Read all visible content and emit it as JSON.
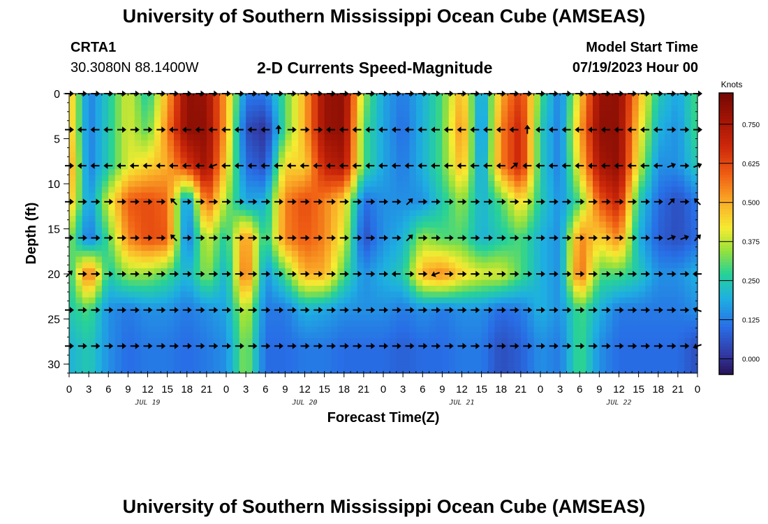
{
  "header": {
    "title": "University of Southern Mississippi Ocean Cube (AMSEAS)",
    "station": "CRTA1",
    "coords": "30.3080N  88.1400W",
    "subtitle": "2-D Currents Speed-Magnitude",
    "model_start_label": "Model Start Time",
    "model_start_value": "07/19/2023 Hour 00"
  },
  "footer": {
    "title": "University of Southern Mississippi Ocean Cube (AMSEAS)"
  },
  "chart_data": {
    "type": "heatmap",
    "title": "2-D Currents Speed-Magnitude",
    "xlabel": "Forecast Time(Z)",
    "ylabel": "Depth (ft)",
    "x_range_hours": [
      0,
      96
    ],
    "y_range_ft": [
      0,
      31
    ],
    "x_ticks": [
      "0",
      "3",
      "6",
      "9",
      "12",
      "15",
      "18",
      "21",
      "0",
      "3",
      "6",
      "9",
      "12",
      "15",
      "18",
      "21",
      "0",
      "3",
      "6",
      "9",
      "12",
      "15",
      "18",
      "21",
      "0",
      "3",
      "6",
      "9",
      "12",
      "15",
      "18",
      "21",
      "0"
    ],
    "y_ticks": [
      0,
      5,
      10,
      15,
      20,
      25,
      30
    ],
    "date_labels": [
      {
        "label": "JUL 19",
        "hour": 12
      },
      {
        "label": "JUL 20",
        "hour": 36
      },
      {
        "label": "JUL 21",
        "hour": 60
      },
      {
        "label": "JUL 22",
        "hour": 84
      }
    ],
    "colorbar": {
      "units": "Knots",
      "range": [
        -0.05,
        0.85
      ],
      "ticks": [
        "0.000",
        "0.125",
        "0.250",
        "0.375",
        "0.500",
        "0.625",
        "0.750"
      ]
    },
    "time_hours": [
      0,
      3,
      6,
      9,
      12,
      15,
      18,
      21,
      24,
      27,
      30,
      33,
      36,
      39,
      42,
      45,
      48,
      51,
      54,
      57,
      60,
      63,
      66,
      69,
      72,
      75,
      78,
      81,
      84,
      87,
      90,
      93,
      96
    ],
    "depth_levels_ft": [
      0,
      4,
      8,
      12,
      16,
      20,
      24,
      28
    ],
    "speed_knots": [
      [
        0.5,
        0.12,
        0.25,
        0.4,
        0.25,
        0.5,
        0.8,
        0.78,
        0.5,
        0.12,
        0.12,
        0.3,
        0.5,
        0.78,
        0.8,
        0.35,
        0.18,
        0.12,
        0.2,
        0.3,
        0.5,
        0.15,
        0.5,
        0.65,
        0.3,
        0.12,
        0.45,
        0.78,
        0.8,
        0.5,
        0.25,
        0.18,
        0.3
      ],
      [
        0.5,
        0.12,
        0.25,
        0.4,
        0.3,
        0.55,
        0.8,
        0.8,
        0.5,
        0.05,
        0.0,
        0.3,
        0.5,
        0.78,
        0.8,
        0.3,
        0.18,
        0.1,
        0.2,
        0.3,
        0.55,
        0.12,
        0.55,
        0.7,
        0.25,
        0.12,
        0.5,
        0.8,
        0.8,
        0.45,
        0.2,
        0.15,
        0.3
      ],
      [
        0.55,
        0.12,
        0.25,
        0.4,
        0.45,
        0.5,
        0.65,
        0.78,
        0.45,
        0.1,
        0.05,
        0.45,
        0.45,
        0.7,
        0.75,
        0.3,
        0.18,
        0.12,
        0.2,
        0.3,
        0.5,
        0.15,
        0.55,
        0.7,
        0.25,
        0.12,
        0.45,
        0.75,
        0.8,
        0.4,
        0.15,
        0.15,
        0.25
      ],
      [
        0.5,
        0.15,
        0.4,
        0.6,
        0.62,
        0.58,
        0.12,
        0.6,
        0.35,
        0.18,
        0.2,
        0.55,
        0.62,
        0.55,
        0.45,
        0.1,
        0.15,
        0.15,
        0.15,
        0.25,
        0.35,
        0.2,
        0.3,
        0.45,
        0.25,
        0.15,
        0.3,
        0.6,
        0.7,
        0.25,
        0.1,
        0.05,
        0.12
      ],
      [
        0.35,
        0.1,
        0.3,
        0.55,
        0.62,
        0.6,
        0.1,
        0.4,
        0.25,
        0.55,
        0.25,
        0.55,
        0.6,
        0.55,
        0.4,
        0.05,
        0.15,
        0.2,
        0.35,
        0.3,
        0.3,
        0.2,
        0.25,
        0.3,
        0.2,
        0.15,
        0.55,
        0.45,
        0.55,
        0.2,
        0.08,
        0.05,
        0.1
      ],
      [
        0.25,
        0.6,
        0.25,
        0.35,
        0.35,
        0.3,
        0.2,
        0.35,
        0.2,
        0.6,
        0.15,
        0.3,
        0.5,
        0.5,
        0.3,
        0.15,
        0.2,
        0.25,
        0.5,
        0.55,
        0.45,
        0.4,
        0.4,
        0.3,
        0.2,
        0.15,
        0.6,
        0.3,
        0.3,
        0.25,
        0.15,
        0.15,
        0.2
      ],
      [
        0.25,
        0.3,
        0.15,
        0.12,
        0.15,
        0.15,
        0.12,
        0.15,
        0.18,
        0.4,
        0.12,
        0.12,
        0.2,
        0.18,
        0.15,
        0.15,
        0.15,
        0.12,
        0.15,
        0.12,
        0.15,
        0.15,
        0.1,
        0.12,
        0.2,
        0.15,
        0.3,
        0.2,
        0.12,
        0.12,
        0.12,
        0.12,
        0.15
      ],
      [
        0.2,
        0.25,
        0.15,
        0.1,
        0.12,
        0.12,
        0.1,
        0.12,
        0.15,
        0.35,
        0.1,
        0.1,
        0.12,
        0.12,
        0.1,
        0.1,
        0.1,
        0.08,
        0.1,
        0.1,
        0.12,
        0.12,
        0.05,
        0.08,
        0.15,
        0.12,
        0.3,
        0.15,
        0.1,
        0.1,
        0.1,
        0.1,
        0.05
      ]
    ],
    "arrow_depths_ft": [
      0,
      4,
      8,
      12,
      16,
      20,
      24,
      28
    ],
    "arrow_hours": [
      0,
      2,
      4,
      6,
      8,
      10,
      12,
      14,
      16,
      18,
      20,
      22,
      24,
      26,
      28,
      30,
      32,
      34,
      36,
      38,
      40,
      42,
      44,
      46,
      48,
      50,
      52,
      54,
      56,
      58,
      60,
      62,
      64,
      66,
      68,
      70,
      72,
      74,
      76,
      78,
      80,
      82,
      84,
      86,
      88,
      90,
      92,
      94,
      96
    ],
    "arrow_directions_deg": [
      [
        0,
        0,
        0,
        0,
        0,
        0,
        0,
        0,
        0,
        0,
        0,
        0,
        0,
        0,
        0,
        0,
        0,
        0,
        0,
        0,
        0,
        0,
        0,
        0,
        0,
        0,
        0,
        0,
        0,
        0,
        0,
        0,
        0,
        0,
        0,
        0,
        0,
        0,
        0,
        0,
        0,
        0,
        0,
        0,
        0,
        0,
        0,
        0,
        0
      ],
      [
        0,
        180,
        180,
        180,
        0,
        0,
        0,
        0,
        180,
        180,
        180,
        180,
        180,
        180,
        180,
        180,
        90,
        0,
        0,
        0,
        180,
        180,
        180,
        180,
        180,
        180,
        180,
        180,
        180,
        180,
        180,
        180,
        180,
        180,
        180,
        90,
        180,
        180,
        180,
        180,
        180,
        180,
        180,
        180,
        180,
        180,
        0,
        0,
        0
      ],
      [
        0,
        180,
        180,
        180,
        180,
        180,
        180,
        180,
        180,
        180,
        180,
        200,
        180,
        180,
        180,
        180,
        180,
        180,
        180,
        180,
        180,
        180,
        180,
        180,
        180,
        180,
        180,
        180,
        180,
        180,
        180,
        180,
        180,
        180,
        40,
        180,
        180,
        180,
        180,
        180,
        180,
        180,
        180,
        180,
        180,
        180,
        20,
        0,
        20
      ],
      [
        0,
        0,
        0,
        0,
        0,
        0,
        0,
        0,
        135,
        0,
        0,
        0,
        0,
        0,
        0,
        0,
        0,
        0,
        0,
        0,
        0,
        0,
        0,
        0,
        0,
        0,
        45,
        0,
        0,
        0,
        0,
        0,
        0,
        0,
        0,
        0,
        0,
        0,
        0,
        0,
        0,
        0,
        0,
        0,
        0,
        0,
        45,
        0,
        135
      ],
      [
        0,
        0,
        0,
        0,
        0,
        0,
        0,
        0,
        135,
        0,
        0,
        0,
        0,
        0,
        0,
        0,
        0,
        0,
        0,
        0,
        0,
        0,
        0,
        0,
        0,
        0,
        45,
        0,
        0,
        0,
        0,
        0,
        0,
        0,
        0,
        0,
        0,
        0,
        0,
        0,
        0,
        0,
        0,
        0,
        0,
        0,
        20,
        20,
        45
      ],
      [
        45,
        0,
        0,
        0,
        0,
        0,
        0,
        0,
        0,
        0,
        0,
        0,
        0,
        0,
        0,
        0,
        0,
        0,
        0,
        0,
        0,
        0,
        0,
        0,
        0,
        180,
        0,
        0,
        200,
        0,
        0,
        0,
        0,
        0,
        0,
        0,
        0,
        0,
        0,
        0,
        0,
        0,
        0,
        0,
        0,
        0,
        0,
        0,
        180
      ],
      [
        0,
        0,
        0,
        0,
        0,
        0,
        0,
        0,
        0,
        0,
        0,
        0,
        0,
        0,
        0,
        0,
        0,
        0,
        0,
        0,
        0,
        0,
        0,
        0,
        0,
        0,
        0,
        0,
        0,
        0,
        0,
        0,
        0,
        0,
        0,
        0,
        0,
        0,
        0,
        0,
        0,
        0,
        0,
        0,
        0,
        0,
        0,
        0,
        160
      ],
      [
        0,
        0,
        0,
        0,
        0,
        0,
        0,
        0,
        0,
        0,
        0,
        0,
        0,
        0,
        0,
        0,
        0,
        0,
        0,
        0,
        0,
        0,
        0,
        0,
        0,
        0,
        0,
        0,
        0,
        0,
        0,
        0,
        0,
        0,
        0,
        0,
        0,
        0,
        0,
        0,
        0,
        0,
        0,
        0,
        0,
        0,
        0,
        0,
        200
      ]
    ]
  }
}
